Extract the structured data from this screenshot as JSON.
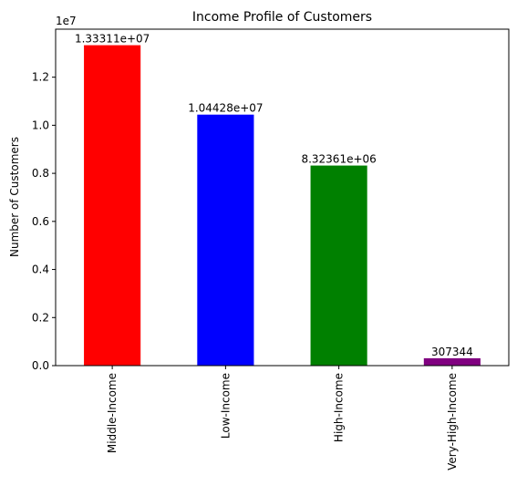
{
  "chart_data": {
    "type": "bar",
    "title": "Income Profile of Customers",
    "xlabel": "",
    "ylabel": "Number of Customers",
    "scale_label": "1e7",
    "scale_factor": 10000000,
    "categories": [
      "Middle-Income",
      "Low-Income",
      "High-Income",
      "Very-High-Income"
    ],
    "values": [
      13331100,
      10442800,
      8323610,
      307344
    ],
    "data_labels": [
      "1.33311e+07",
      "1.04428e+07",
      "8.32361e+06",
      "307344"
    ],
    "colors": [
      "#ff0000",
      "#0000ff",
      "#008000",
      "#800080"
    ],
    "ylim": [
      0,
      13997655
    ],
    "yticks": [
      0,
      2000000,
      4000000,
      6000000,
      8000000,
      10000000,
      12000000
    ],
    "ytick_labels": [
      "0.0",
      "0.2",
      "0.4",
      "0.6",
      "0.8",
      "1.0",
      "1.2"
    ],
    "grid": false,
    "legend": "none"
  }
}
